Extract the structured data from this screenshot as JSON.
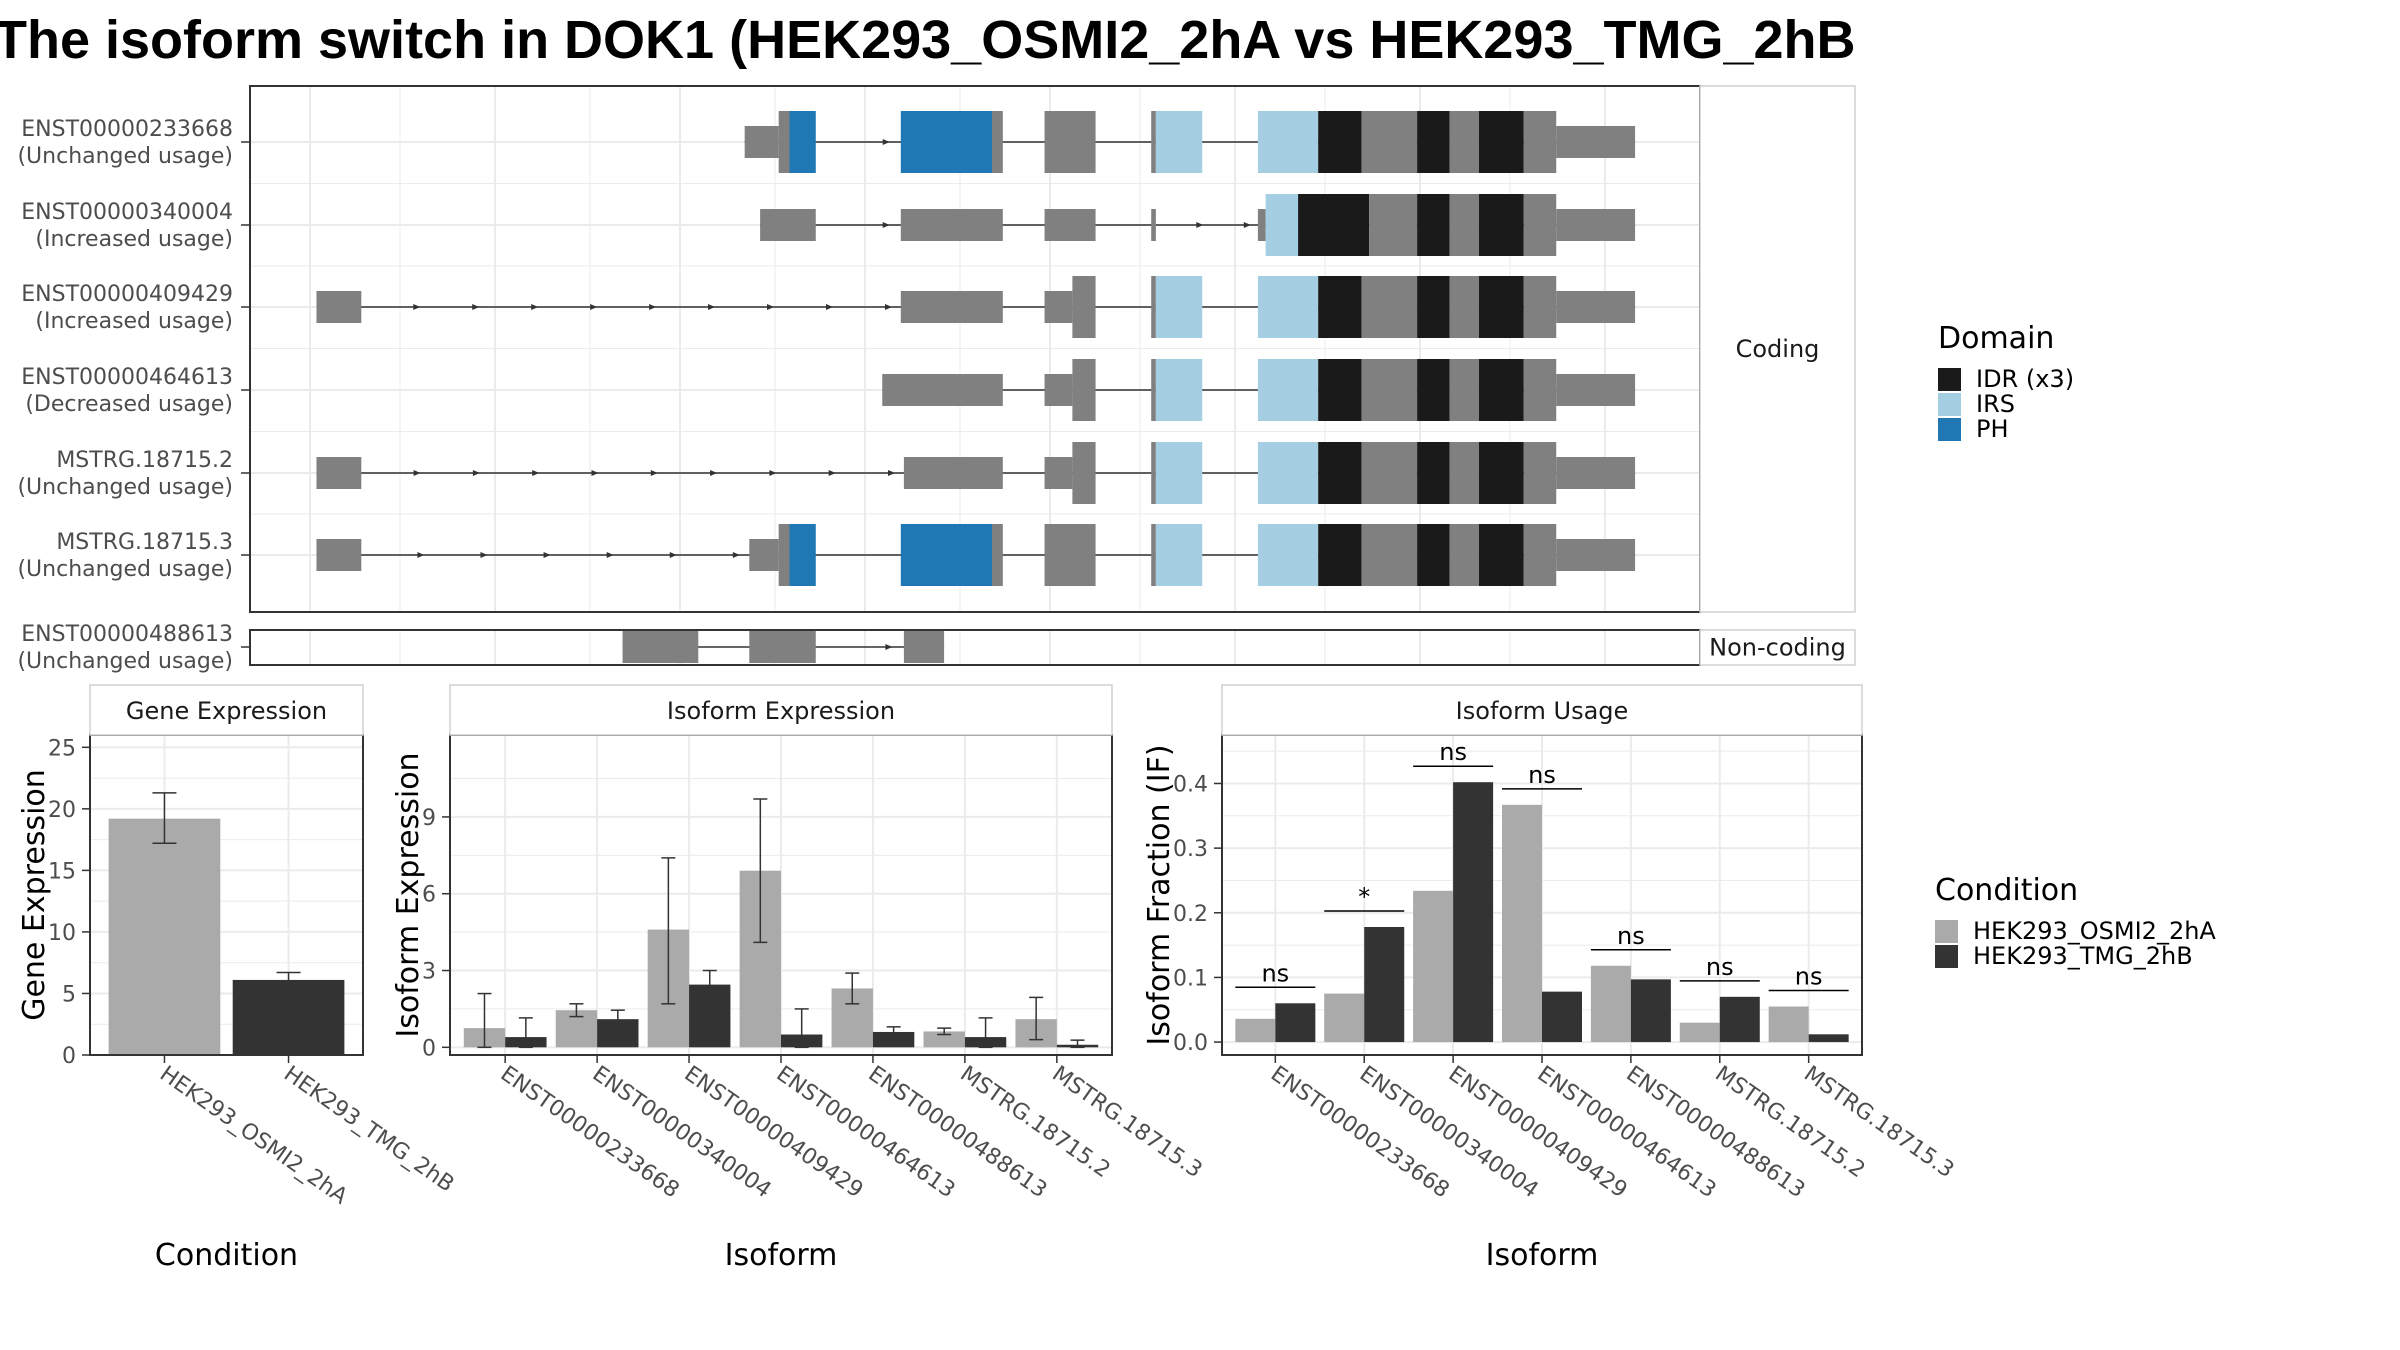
{
  "title": "The isoform switch in DOK1 (HEK293_OSMI2_2hA vs HEK293_TMG_2hB",
  "colors": {
    "exon": "#808080",
    "intron": "#333333",
    "IDR": "#1a1a1a",
    "IRS": "#a6cee3",
    "PH": "#1f78b4",
    "cond_a": "#aaaaaa",
    "cond_b": "#333333",
    "panel_border": "#333333",
    "grid": "#ebebeb"
  },
  "structure": {
    "facets": {
      "coding": "Coding",
      "noncoding": "Non-coding"
    },
    "transcripts": [
      {
        "id": "ENST00000233668",
        "usage": "(Unchanged usage)",
        "facet": "coding",
        "segments": [
          {
            "s": 480,
            "e": 502,
            "type": "exon",
            "h": "small"
          },
          {
            "s": 502,
            "e": 509,
            "type": "exon",
            "h": "big"
          },
          {
            "s": 509,
            "e": 526,
            "type": "PH",
            "h": "big"
          },
          {
            "s": 581,
            "e": 640,
            "type": "PH",
            "h": "big"
          },
          {
            "s": 640,
            "e": 647,
            "type": "exon",
            "h": "big"
          },
          {
            "s": 674,
            "e": 707,
            "type": "exon",
            "h": "big"
          },
          {
            "s": 743,
            "e": 746,
            "type": "exon",
            "h": "big"
          },
          {
            "s": 746,
            "e": 776,
            "type": "IRS",
            "h": "big"
          },
          {
            "s": 812,
            "e": 851,
            "type": "IRS",
            "h": "big"
          },
          {
            "s": 851,
            "e": 879,
            "type": "IDR",
            "h": "big"
          },
          {
            "s": 879,
            "e": 915,
            "type": "exon",
            "h": "big"
          },
          {
            "s": 915,
            "e": 936,
            "type": "IDR",
            "h": "big"
          },
          {
            "s": 936,
            "e": 955,
            "type": "exon",
            "h": "big"
          },
          {
            "s": 955,
            "e": 984,
            "type": "IDR",
            "h": "big"
          },
          {
            "s": 984,
            "e": 1005,
            "type": "exon",
            "h": "big"
          },
          {
            "s": 1005,
            "e": 1056,
            "type": "exon",
            "h": "small"
          }
        ],
        "arrows": [
          [
            526,
            581
          ]
        ]
      },
      {
        "id": "ENST00000340004",
        "usage": "(Increased usage)",
        "facet": "coding",
        "segments": [
          {
            "s": 490,
            "e": 526,
            "type": "exon",
            "h": "small"
          },
          {
            "s": 581,
            "e": 647,
            "type": "exon",
            "h": "small"
          },
          {
            "s": 674,
            "e": 707,
            "type": "exon",
            "h": "small"
          },
          {
            "s": 743,
            "e": 746,
            "type": "exon",
            "h": "small"
          },
          {
            "s": 812,
            "e": 817,
            "type": "exon",
            "h": "small"
          },
          {
            "s": 817,
            "e": 838,
            "type": "IRS",
            "h": "big"
          },
          {
            "s": 838,
            "e": 884,
            "type": "IDR",
            "h": "big"
          },
          {
            "s": 884,
            "e": 915,
            "type": "exon",
            "h": "big"
          },
          {
            "s": 915,
            "e": 936,
            "type": "IDR",
            "h": "big"
          },
          {
            "s": 936,
            "e": 955,
            "type": "exon",
            "h": "big"
          },
          {
            "s": 955,
            "e": 984,
            "type": "IDR",
            "h": "big"
          },
          {
            "s": 984,
            "e": 1005,
            "type": "exon",
            "h": "big"
          },
          {
            "s": 1005,
            "e": 1056,
            "type": "exon",
            "h": "small"
          }
        ],
        "arrows": [
          [
            526,
            581
          ],
          [
            746,
            812
          ]
        ]
      },
      {
        "id": "ENST00000409429",
        "usage": "(Increased usage)",
        "facet": "coding",
        "segments": [
          {
            "s": 203,
            "e": 232,
            "type": "exon",
            "h": "small"
          },
          {
            "s": 581,
            "e": 647,
            "type": "exon",
            "h": "small"
          },
          {
            "s": 674,
            "e": 692,
            "type": "exon",
            "h": "small"
          },
          {
            "s": 692,
            "e": 707,
            "type": "exon",
            "h": "big"
          },
          {
            "s": 743,
            "e": 746,
            "type": "exon",
            "h": "big"
          },
          {
            "s": 746,
            "e": 776,
            "type": "IRS",
            "h": "big"
          },
          {
            "s": 812,
            "e": 851,
            "type": "IRS",
            "h": "big"
          },
          {
            "s": 851,
            "e": 879,
            "type": "IDR",
            "h": "big"
          },
          {
            "s": 879,
            "e": 915,
            "type": "exon",
            "h": "big"
          },
          {
            "s": 915,
            "e": 936,
            "type": "IDR",
            "h": "big"
          },
          {
            "s": 936,
            "e": 955,
            "type": "exon",
            "h": "big"
          },
          {
            "s": 955,
            "e": 984,
            "type": "IDR",
            "h": "big"
          },
          {
            "s": 984,
            "e": 1005,
            "type": "exon",
            "h": "big"
          },
          {
            "s": 1005,
            "e": 1056,
            "type": "exon",
            "h": "small"
          }
        ],
        "arrows": [
          [
            232,
            581
          ]
        ]
      },
      {
        "id": "ENST00000464613",
        "usage": "(Decreased usage)",
        "facet": "coding",
        "segments": [
          {
            "s": 569,
            "e": 647,
            "type": "exon",
            "h": "small"
          },
          {
            "s": 674,
            "e": 692,
            "type": "exon",
            "h": "small"
          },
          {
            "s": 692,
            "e": 707,
            "type": "exon",
            "h": "big"
          },
          {
            "s": 743,
            "e": 746,
            "type": "exon",
            "h": "big"
          },
          {
            "s": 746,
            "e": 776,
            "type": "IRS",
            "h": "big"
          },
          {
            "s": 812,
            "e": 851,
            "type": "IRS",
            "h": "big"
          },
          {
            "s": 851,
            "e": 879,
            "type": "IDR",
            "h": "big"
          },
          {
            "s": 879,
            "e": 915,
            "type": "exon",
            "h": "big"
          },
          {
            "s": 915,
            "e": 936,
            "type": "IDR",
            "h": "big"
          },
          {
            "s": 936,
            "e": 955,
            "type": "exon",
            "h": "big"
          },
          {
            "s": 955,
            "e": 984,
            "type": "IDR",
            "h": "big"
          },
          {
            "s": 984,
            "e": 1005,
            "type": "exon",
            "h": "big"
          },
          {
            "s": 1005,
            "e": 1056,
            "type": "exon",
            "h": "small"
          }
        ],
        "arrows": []
      },
      {
        "id": "MSTRG.18715.2",
        "usage": "(Unchanged usage)",
        "facet": "coding",
        "segments": [
          {
            "s": 203,
            "e": 232,
            "type": "exon",
            "h": "small"
          },
          {
            "s": 583,
            "e": 647,
            "type": "exon",
            "h": "small"
          },
          {
            "s": 674,
            "e": 692,
            "type": "exon",
            "h": "small"
          },
          {
            "s": 692,
            "e": 707,
            "type": "exon",
            "h": "big"
          },
          {
            "s": 743,
            "e": 746,
            "type": "exon",
            "h": "big"
          },
          {
            "s": 746,
            "e": 776,
            "type": "IRS",
            "h": "big"
          },
          {
            "s": 812,
            "e": 851,
            "type": "IRS",
            "h": "big"
          },
          {
            "s": 851,
            "e": 879,
            "type": "IDR",
            "h": "big"
          },
          {
            "s": 879,
            "e": 915,
            "type": "exon",
            "h": "big"
          },
          {
            "s": 915,
            "e": 936,
            "type": "IDR",
            "h": "big"
          },
          {
            "s": 936,
            "e": 955,
            "type": "exon",
            "h": "big"
          },
          {
            "s": 955,
            "e": 984,
            "type": "IDR",
            "h": "big"
          },
          {
            "s": 984,
            "e": 1005,
            "type": "exon",
            "h": "big"
          },
          {
            "s": 1005,
            "e": 1056,
            "type": "exon",
            "h": "small"
          }
        ],
        "arrows": [
          [
            232,
            583
          ]
        ]
      },
      {
        "id": "MSTRG.18715.3",
        "usage": "(Unchanged usage)",
        "facet": "coding",
        "segments": [
          {
            "s": 203,
            "e": 232,
            "type": "exon",
            "h": "small"
          },
          {
            "s": 483,
            "e": 502,
            "type": "exon",
            "h": "small"
          },
          {
            "s": 502,
            "e": 509,
            "type": "exon",
            "h": "big"
          },
          {
            "s": 509,
            "e": 526,
            "type": "PH",
            "h": "big"
          },
          {
            "s": 581,
            "e": 640,
            "type": "PH",
            "h": "big"
          },
          {
            "s": 640,
            "e": 647,
            "type": "exon",
            "h": "big"
          },
          {
            "s": 674,
            "e": 707,
            "type": "exon",
            "h": "big"
          },
          {
            "s": 743,
            "e": 746,
            "type": "exon",
            "h": "big"
          },
          {
            "s": 746,
            "e": 776,
            "type": "IRS",
            "h": "big"
          },
          {
            "s": 812,
            "e": 851,
            "type": "IRS",
            "h": "big"
          },
          {
            "s": 851,
            "e": 879,
            "type": "IDR",
            "h": "big"
          },
          {
            "s": 879,
            "e": 915,
            "type": "exon",
            "h": "big"
          },
          {
            "s": 915,
            "e": 936,
            "type": "IDR",
            "h": "big"
          },
          {
            "s": 936,
            "e": 955,
            "type": "exon",
            "h": "big"
          },
          {
            "s": 955,
            "e": 984,
            "type": "IDR",
            "h": "big"
          },
          {
            "s": 984,
            "e": 1005,
            "type": "exon",
            "h": "big"
          },
          {
            "s": 1005,
            "e": 1056,
            "type": "exon",
            "h": "small"
          }
        ],
        "arrows": [
          [
            232,
            483
          ]
        ]
      },
      {
        "id": "ENST00000488613",
        "usage": "(Unchanged usage)",
        "facet": "noncoding",
        "segments": [
          {
            "s": 401,
            "e": 450,
            "type": "exon",
            "h": "small"
          },
          {
            "s": 483,
            "e": 526,
            "type": "exon",
            "h": "small"
          },
          {
            "s": 583,
            "e": 609,
            "type": "exon",
            "h": "small"
          }
        ],
        "arrows": [
          [
            526,
            583
          ]
        ]
      }
    ]
  },
  "legend_domain": {
    "title": "Domain",
    "items": [
      {
        "label": "IDR (x3)",
        "key": "IDR"
      },
      {
        "label": "IRS",
        "key": "IRS"
      },
      {
        "label": "PH",
        "key": "PH"
      }
    ]
  },
  "legend_condition": {
    "title": "Condition",
    "items": [
      {
        "label": "HEK293_OSMI2_2hA",
        "key": "cond_a"
      },
      {
        "label": "HEK293_TMG_2hB",
        "key": "cond_b"
      }
    ]
  },
  "chart_data": [
    {
      "type": "bar",
      "title": "Gene Expression",
      "xlabel": "Condition",
      "ylabel": "Gene Expression",
      "ylim": [
        0,
        26
      ],
      "yticks": [
        0,
        5,
        10,
        15,
        20,
        25
      ],
      "categories": [
        "HEK293_OSMI2_2hA",
        "HEK293_TMG_2hB"
      ],
      "values": [
        19.2,
        6.1
      ],
      "error": [
        [
          17.2,
          21.3
        ],
        [
          5.5,
          6.7
        ]
      ]
    },
    {
      "type": "bar",
      "title": "Isoform Expression",
      "xlabel": "Isoform",
      "ylabel": "Isoform Expression",
      "ylim": [
        -0.3,
        12.2
      ],
      "yticks": [
        0,
        3,
        6,
        9
      ],
      "categories": [
        "ENST00000233668",
        "ENST00000340004",
        "ENST00000409429",
        "ENST00000464613",
        "ENST00000488613",
        "MSTRG.18715.2",
        "MSTRG.18715.3"
      ],
      "series": [
        {
          "name": "HEK293_OSMI2_2hA",
          "values": [
            0.75,
            1.45,
            4.6,
            6.9,
            2.3,
            0.62,
            1.1
          ],
          "error": [
            [
              0,
              2.1
            ],
            [
              1.2,
              1.7
            ],
            [
              1.7,
              7.4
            ],
            [
              4.1,
              9.7
            ],
            [
              1.7,
              2.9
            ],
            [
              0.5,
              0.75
            ],
            [
              0.3,
              1.95
            ]
          ]
        },
        {
          "name": "HEK293_TMG_2hB",
          "values": [
            0.4,
            1.1,
            2.45,
            0.5,
            0.6,
            0.4,
            0.1
          ],
          "error": [
            [
              0,
              1.15
            ],
            [
              0.7,
              1.45
            ],
            [
              1.9,
              3.0
            ],
            [
              0,
              1.5
            ],
            [
              0.45,
              0.8
            ],
            [
              0,
              1.15
            ],
            [
              0,
              0.28
            ]
          ]
        }
      ]
    },
    {
      "type": "bar",
      "title": "Isoform Usage",
      "xlabel": "Isoform",
      "ylabel": "Isoform Fraction (IF)",
      "ylim": [
        -0.02,
        0.475
      ],
      "yticks": [
        0.0,
        0.1,
        0.2,
        0.3,
        0.4
      ],
      "ytick_labels": [
        "0.0",
        "0.1",
        "0.2",
        "0.3",
        "0.4"
      ],
      "categories": [
        "ENST00000233668",
        "ENST00000340004",
        "ENST00000409429",
        "ENST00000464613",
        "ENST00000488613",
        "MSTRG.18715.2",
        "MSTRG.18715.3"
      ],
      "series": [
        {
          "name": "HEK293_OSMI2_2hA",
          "values": [
            0.036,
            0.075,
            0.234,
            0.367,
            0.118,
            0.03,
            0.055
          ]
        },
        {
          "name": "HEK293_TMG_2hB",
          "values": [
            0.06,
            0.178,
            0.402,
            0.078,
            0.097,
            0.07,
            0.012
          ]
        }
      ],
      "significance": [
        "ns",
        "*",
        "ns",
        "ns",
        "ns",
        "ns",
        "ns"
      ]
    }
  ]
}
